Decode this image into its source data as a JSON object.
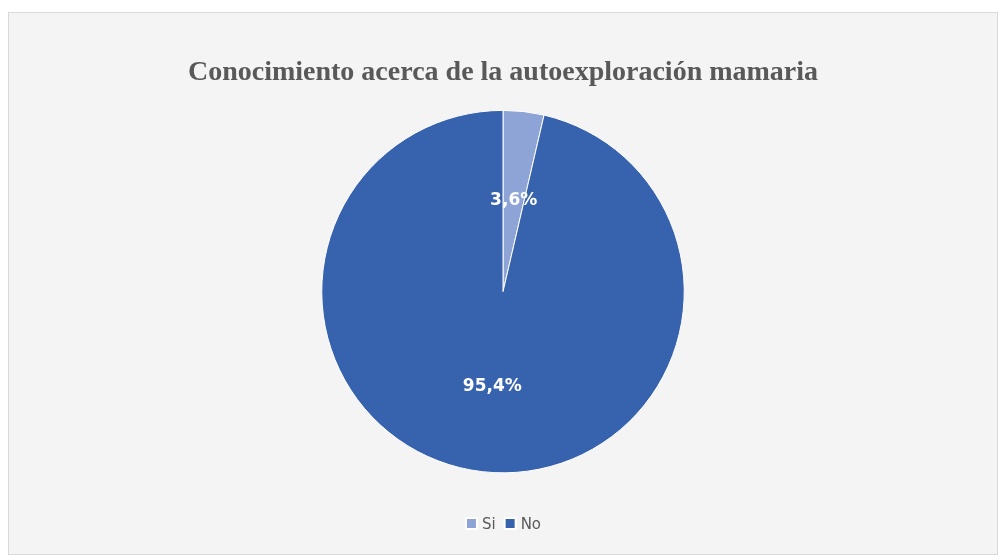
{
  "chart_data": {
    "type": "pie",
    "title": "Conocimiento acerca de la autoexploración mamaria",
    "categories": [
      "Si",
      "No"
    ],
    "values": [
      3.6,
      95.4
    ],
    "colors": [
      "#8ea3d6",
      "#3762ad"
    ],
    "value_labels": [
      "3,6%",
      "95,4%"
    ],
    "legend": "bottom"
  }
}
